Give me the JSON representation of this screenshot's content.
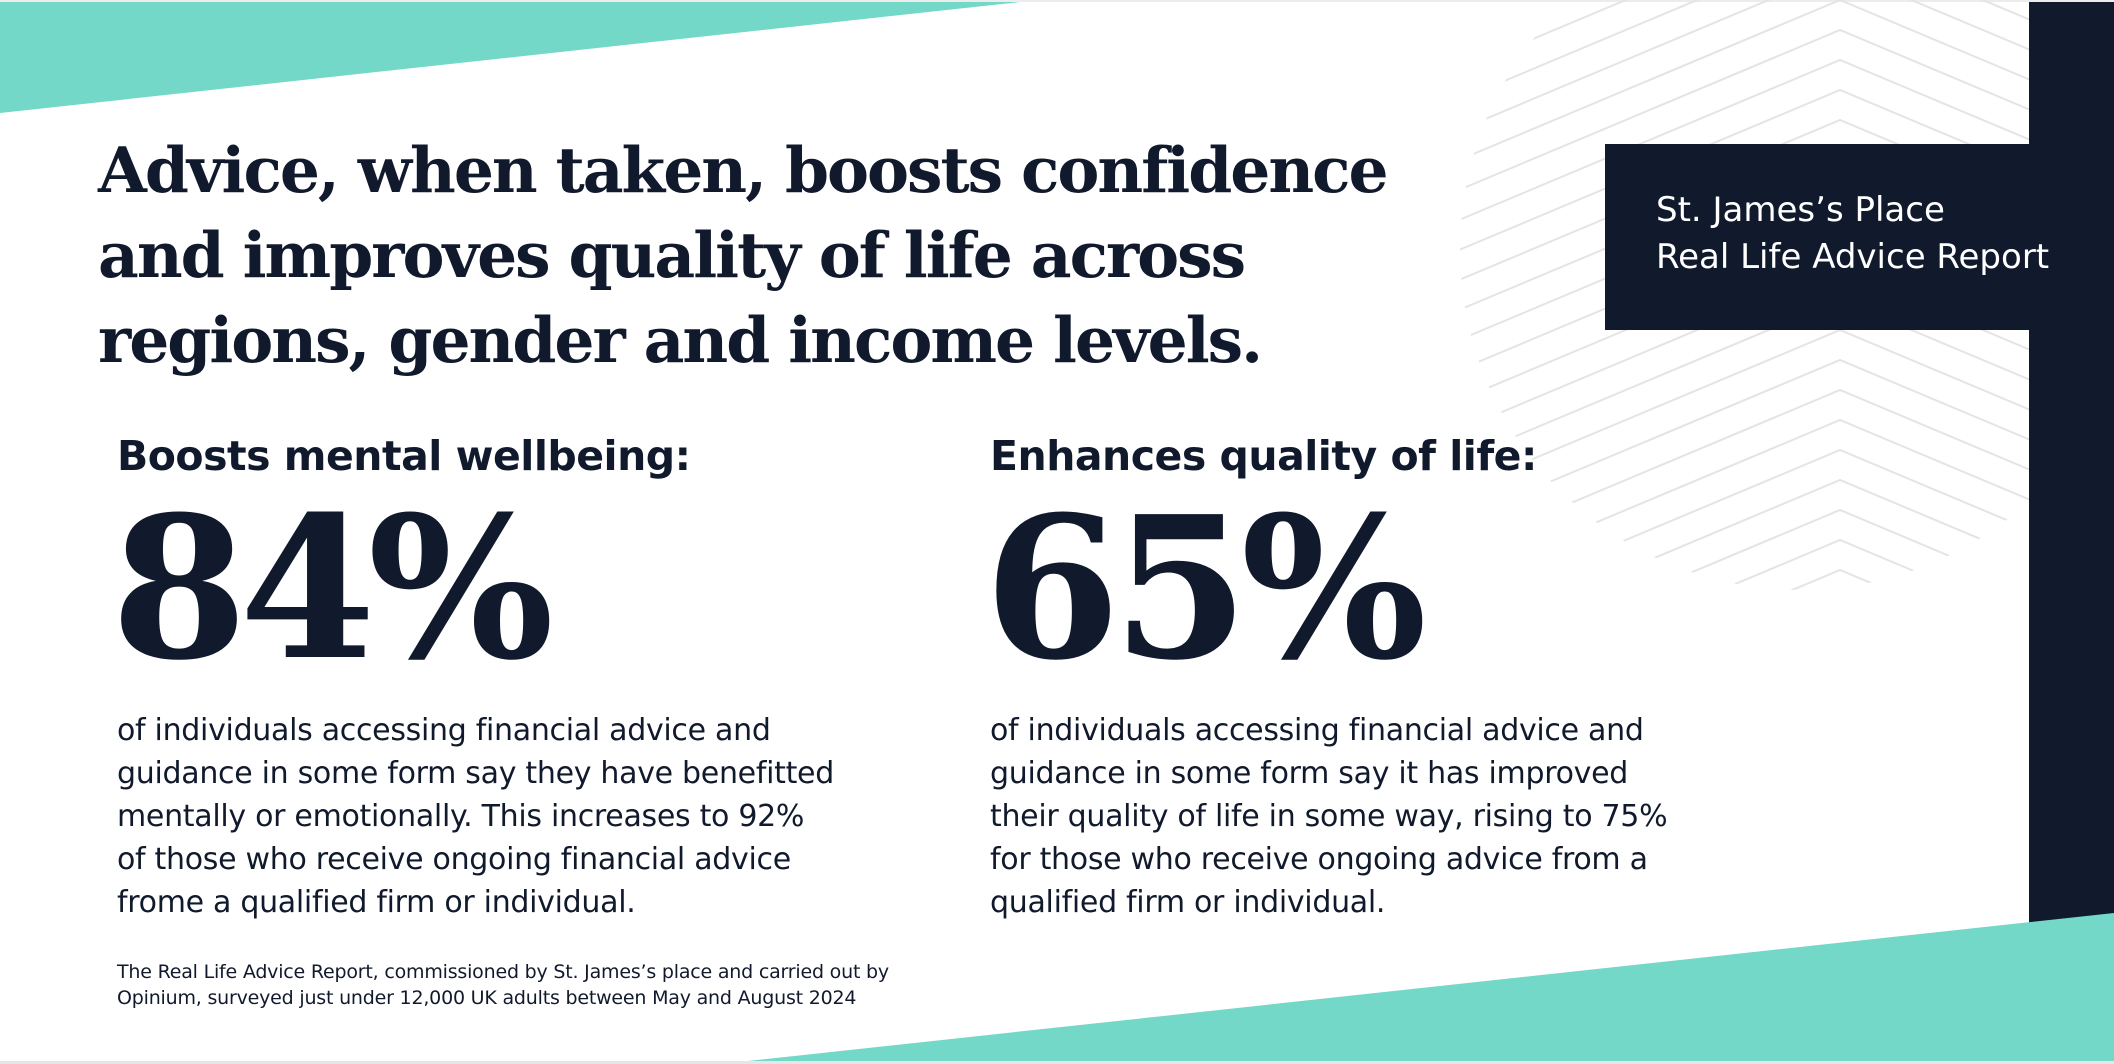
{
  "colors": {
    "navy": "#111a2c",
    "teal": "#74d8c8",
    "background": "#ffffff",
    "pattern_line": "#e6e6e6"
  },
  "headline": {
    "lines": [
      "Advice, when taken, boosts confidence",
      "and improves quality of life across",
      "regions, gender and income levels."
    ]
  },
  "report_label": {
    "lines": [
      "St. James’s Place",
      "Real Life Advice Report"
    ]
  },
  "stats": [
    {
      "heading": "Boosts mental wellbeing:",
      "value": "84%",
      "description_lines": [
        "of individuals accessing financial advice and",
        "guidance in some form say they have benefitted",
        "mentally or emotionally. This increases to 92%",
        "of those who receive ongoing financial advice",
        "frome a qualified firm or individual."
      ]
    },
    {
      "heading": "Enhances quality of life:",
      "value": "65%",
      "description_lines": [
        "of individuals accessing financial advice and",
        "guidance in some form say it has improved",
        "their quality of life in some way, rising to 75%",
        "for those who receive ongoing advice from a",
        "qualified firm or individual."
      ]
    }
  ],
  "footnote": {
    "lines": [
      "The Real Life Advice Report, commissioned by St. James’s place and carried out by",
      "Opinium, surveyed just under 12,000 UK adults between May and August 2024"
    ]
  }
}
